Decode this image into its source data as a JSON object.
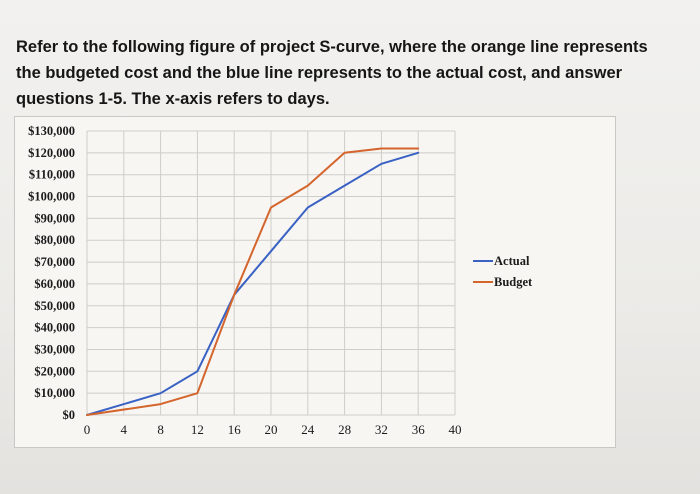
{
  "question": {
    "text": "Refer to the following figure of project S-curve, where the orange line represents the budgeted cost and the blue line represents to the actual cost, and answer questions 1-5. The x-axis refers to days."
  },
  "chart_data": {
    "type": "line",
    "x_ticks": [
      0,
      4,
      8,
      12,
      16,
      20,
      24,
      28,
      32,
      36,
      40
    ],
    "y_ticks": [
      0,
      10000,
      20000,
      30000,
      40000,
      50000,
      60000,
      70000,
      80000,
      90000,
      100000,
      110000,
      120000,
      130000
    ],
    "y_tick_labels": [
      "$0",
      "$10,000",
      "$20,000",
      "$30,000",
      "$40,000",
      "$50,000",
      "$60,000",
      "$70,000",
      "$80,000",
      "$90,000",
      "$100,000",
      "$110,000",
      "$120,000",
      "$130,000"
    ],
    "xlim": [
      0,
      40
    ],
    "ylim": [
      0,
      130000
    ],
    "grid": true,
    "legend_position": "right",
    "series": [
      {
        "name": "Actual",
        "color": "#3a62c4",
        "x": [
          0,
          8,
          12,
          16,
          20,
          24,
          28,
          32,
          36
        ],
        "y": [
          0,
          10000,
          20000,
          55000,
          75000,
          95000,
          105000,
          115000,
          120000
        ]
      },
      {
        "name": "Budget",
        "color": "#d4652c",
        "x": [
          0,
          8,
          12,
          16,
          20,
          24,
          28,
          32,
          36
        ],
        "y": [
          0,
          5000,
          10000,
          55000,
          95000,
          105000,
          120000,
          122000,
          122000
        ]
      }
    ]
  }
}
